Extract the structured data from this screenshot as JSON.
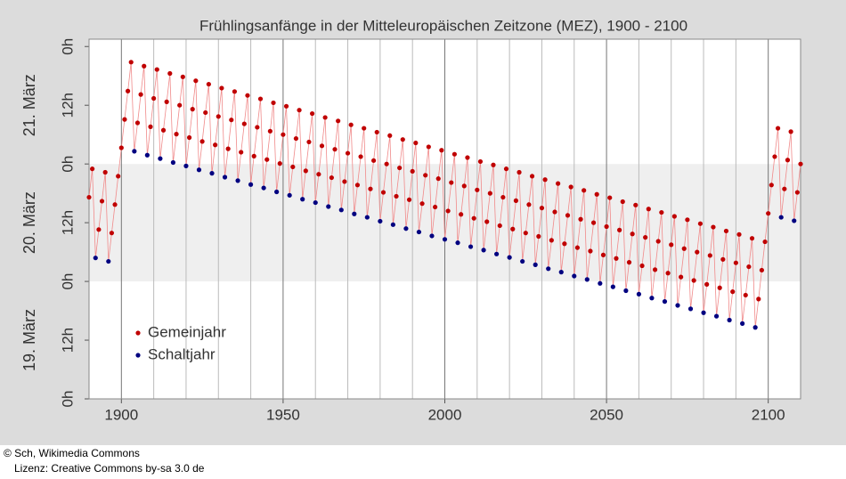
{
  "chart_data": {
    "type": "scatter",
    "title": "Frühlingsanfänge in der Mitteleuropäischen Zeitzone (MEZ), 1900 - 2100",
    "xlim": [
      1890,
      2110
    ],
    "ylim": [
      0,
      73.5
    ],
    "xticks": [
      1900,
      1950,
      2000,
      2050,
      2100
    ],
    "xgrid": [
      1900,
      1910,
      1920,
      1930,
      1940,
      1950,
      1960,
      1970,
      1980,
      1990,
      2000,
      2010,
      2020,
      2030,
      2040,
      2050,
      2060,
      2070,
      2080,
      2090,
      2100
    ],
    "yticks": [
      {
        "value": 0,
        "label": "0h"
      },
      {
        "value": 12,
        "label": "12h"
      },
      {
        "value": 24,
        "label": "0h"
      },
      {
        "value": 36,
        "label": "12h"
      },
      {
        "value": 48,
        "label": "0h"
      },
      {
        "value": 60,
        "label": "12h"
      },
      {
        "value": 72,
        "label": "0h"
      }
    ],
    "annotations": [
      {
        "text": "19. März",
        "y": 12
      },
      {
        "text": "20. März",
        "y": 36
      },
      {
        "text": "21. März",
        "y": 60
      }
    ],
    "band": {
      "y": [
        24,
        48
      ],
      "color": "#efefef"
    },
    "connect_color": "#f08a8a",
    "legend": "lower left",
    "series": [
      {
        "name": "Gemeinjahr",
        "color": "#c00000",
        "x": [
          1890,
          1891,
          1893,
          1894,
          1895,
          1897,
          1898,
          1899,
          1900,
          1901,
          1902,
          1903,
          1905,
          1906,
          1907,
          1909,
          1910,
          1911,
          1913,
          1914,
          1915,
          1917,
          1918,
          1919,
          1921,
          1922,
          1923,
          1925,
          1926,
          1927,
          1929,
          1930,
          1931,
          1933,
          1934,
          1935,
          1937,
          1938,
          1939,
          1941,
          1942,
          1943,
          1945,
          1946,
          1947,
          1949,
          1950,
          1951,
          1953,
          1954,
          1955,
          1957,
          1958,
          1959,
          1961,
          1962,
          1963,
          1965,
          1966,
          1967,
          1969,
          1970,
          1971,
          1973,
          1974,
          1975,
          1977,
          1978,
          1979,
          1981,
          1982,
          1983,
          1985,
          1986,
          1987,
          1989,
          1990,
          1991,
          1993,
          1994,
          1995,
          1997,
          1998,
          1999,
          2001,
          2002,
          2003,
          2005,
          2006,
          2007,
          2009,
          2010,
          2011,
          2013,
          2014,
          2015,
          2017,
          2018,
          2019,
          2021,
          2022,
          2023,
          2025,
          2026,
          2027,
          2029,
          2030,
          2031,
          2033,
          2034,
          2035,
          2037,
          2038,
          2039,
          2041,
          2042,
          2043,
          2045,
          2046,
          2047,
          2049,
          2050,
          2051,
          2053,
          2054,
          2055,
          2057,
          2058,
          2059,
          2061,
          2062,
          2063,
          2065,
          2066,
          2067,
          2069,
          2070,
          2071,
          2073,
          2074,
          2075,
          2077,
          2078,
          2079,
          2081,
          2082,
          2083,
          2085,
          2086,
          2087,
          2089,
          2090,
          2091,
          2093,
          2094,
          2095,
          2097,
          2098,
          2099,
          2100,
          2101,
          2102,
          2103,
          2105,
          2106,
          2107,
          2109,
          2110
        ],
        "values": [
          41.2,
          47.0,
          34.6,
          40.4,
          46.3,
          33.9,
          39.7,
          45.5,
          51.3,
          57.1,
          62.9,
          68.8,
          56.4,
          62.2,
          68.0,
          55.6,
          61.4,
          67.3,
          54.9,
          60.7,
          66.5,
          54.1,
          60.0,
          65.8,
          53.4,
          59.2,
          65.0,
          52.6,
          58.5,
          64.3,
          51.9,
          57.7,
          63.5,
          51.1,
          57.0,
          62.8,
          50.4,
          56.2,
          62.0,
          49.6,
          55.5,
          61.3,
          48.9,
          54.7,
          60.5,
          48.1,
          54.0,
          59.8,
          47.4,
          53.2,
          59.0,
          46.6,
          52.5,
          58.3,
          45.9,
          51.7,
          57.5,
          45.2,
          51.0,
          56.8,
          44.4,
          50.2,
          56.0,
          43.7,
          49.5,
          55.3,
          42.9,
          48.7,
          54.5,
          42.2,
          48.0,
          53.8,
          41.4,
          47.2,
          53.0,
          40.7,
          46.5,
          52.3,
          39.9,
          45.7,
          51.5,
          39.2,
          45.0,
          50.8,
          38.4,
          44.2,
          50.0,
          37.7,
          43.5,
          49.3,
          36.9,
          42.7,
          48.5,
          36.2,
          42.0,
          47.8,
          35.4,
          41.2,
          47.0,
          34.7,
          40.5,
          46.3,
          33.9,
          39.7,
          45.5,
          33.2,
          39.0,
          44.8,
          32.4,
          38.2,
          44.0,
          31.7,
          37.5,
          43.3,
          30.9,
          36.7,
          42.6,
          30.2,
          36.0,
          41.8,
          29.4,
          35.2,
          41.1,
          28.7,
          34.5,
          40.3,
          27.9,
          33.7,
          39.6,
          27.2,
          33.0,
          38.8,
          26.4,
          32.2,
          38.1,
          25.7,
          31.5,
          37.3,
          24.9,
          30.7,
          36.6,
          24.2,
          30.0,
          35.8,
          23.4,
          29.3,
          35.1,
          22.7,
          28.5,
          34.3,
          21.9,
          27.8,
          33.6,
          21.2,
          27.0,
          32.8,
          20.4,
          26.3,
          32.1,
          37.9,
          43.7,
          49.5,
          55.3,
          42.9,
          48.8,
          54.6,
          42.2,
          48.0
        ]
      },
      {
        "name": "Schaltjahr",
        "color": "#000080",
        "x": [
          1892,
          1896,
          1904,
          1908,
          1912,
          1916,
          1920,
          1924,
          1928,
          1932,
          1936,
          1940,
          1944,
          1948,
          1952,
          1956,
          1960,
          1964,
          1968,
          1972,
          1976,
          1980,
          1984,
          1988,
          1992,
          1996,
          2000,
          2004,
          2008,
          2012,
          2016,
          2020,
          2024,
          2028,
          2032,
          2036,
          2040,
          2044,
          2048,
          2052,
          2056,
          2060,
          2064,
          2068,
          2072,
          2076,
          2080,
          2084,
          2088,
          2092,
          2096,
          2104,
          2108
        ],
        "values": [
          28.8,
          28.1,
          50.6,
          49.8,
          49.1,
          48.3,
          47.6,
          46.8,
          46.1,
          45.3,
          44.6,
          43.8,
          43.1,
          42.3,
          41.6,
          40.8,
          40.1,
          39.3,
          38.6,
          37.8,
          37.1,
          36.3,
          35.6,
          34.8,
          34.1,
          33.3,
          32.6,
          31.9,
          31.1,
          30.4,
          29.6,
          28.9,
          28.1,
          27.4,
          26.6,
          25.9,
          25.1,
          24.4,
          23.6,
          22.9,
          22.1,
          21.4,
          20.6,
          19.9,
          19.1,
          18.4,
          17.6,
          16.9,
          16.1,
          15.4,
          14.6,
          37.1,
          36.4
        ]
      }
    ]
  },
  "footer": {
    "credit": "© Sch, Wikimedia Commons",
    "license": "Lizenz: Creative Commons by-sa 3.0 de"
  }
}
